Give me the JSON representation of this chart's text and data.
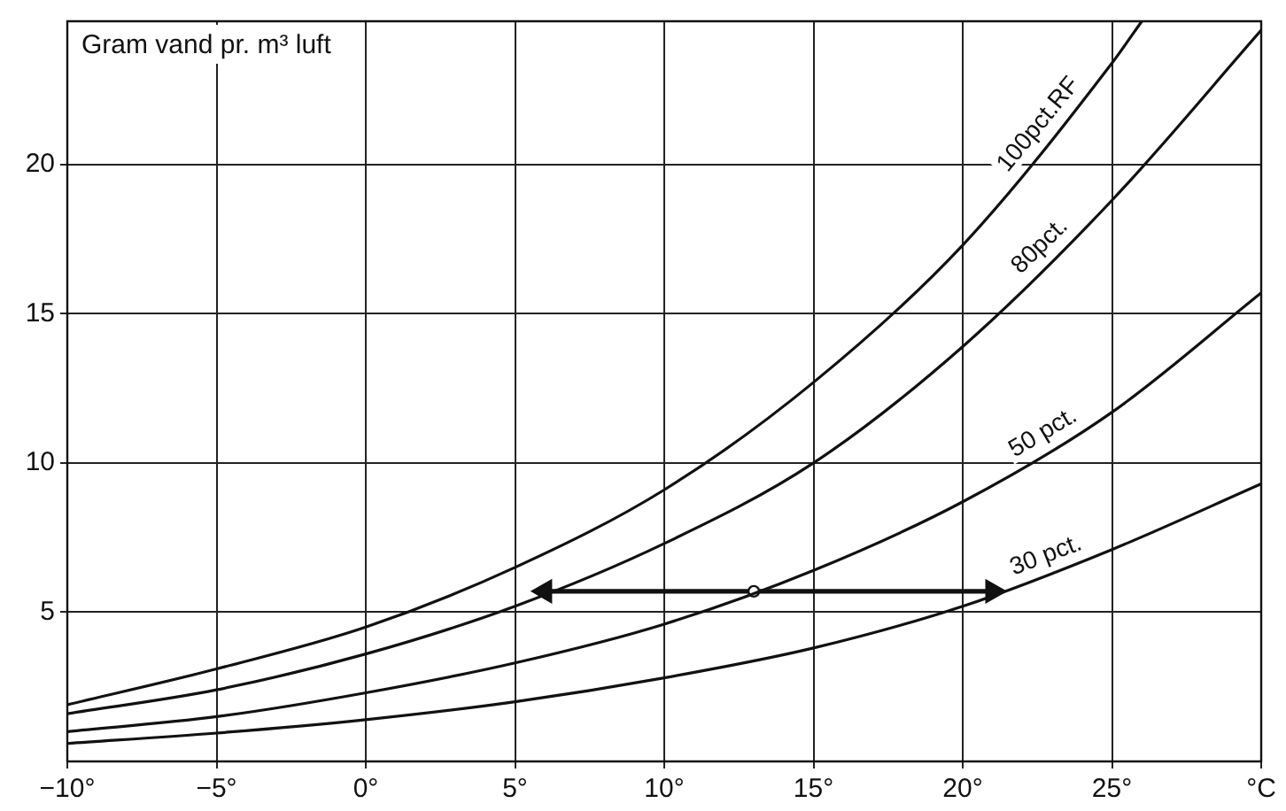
{
  "chart_data": {
    "type": "line",
    "ylabel": "Gram vand pr. m³ luft",
    "x": [
      -10,
      -5,
      0,
      5,
      10,
      15,
      20,
      25,
      30
    ],
    "series": [
      {
        "name": "100pct.RF",
        "color": "#111111",
        "x": [
          -10,
          -5,
          0,
          5,
          10,
          15,
          20,
          25,
          26
        ],
        "values": [
          1.9,
          3.1,
          4.5,
          6.5,
          9.1,
          12.7,
          17.3,
          23.4,
          24.8
        ]
      },
      {
        "name": "80pct.",
        "color": "#111111",
        "values": [
          1.6,
          2.4,
          3.6,
          5.2,
          7.3,
          10,
          13.9,
          18.8,
          24.5
        ]
      },
      {
        "name": "50 pct.",
        "color": "#111111",
        "values": [
          1.0,
          1.5,
          2.3,
          3.3,
          4.6,
          6.4,
          8.7,
          11.7,
          15.7
        ]
      },
      {
        "name": "30 pct.",
        "color": "#111111",
        "values": [
          0.6,
          0.95,
          1.4,
          2.0,
          2.8,
          3.8,
          5.2,
          7.1,
          9.3
        ]
      },
      {
        "color": "#111111",
        "marker": "triangle",
        "x": [
          6,
          13,
          21
        ],
        "values": [
          5.7,
          5.7,
          5.7
        ]
      }
    ],
    "xlim": [
      -10,
      30
    ],
    "ylim": [
      0,
      24.8
    ],
    "xticks": [
      {
        "value": -10,
        "label": "−10°"
      },
      {
        "value": -5,
        "label": "−5°"
      },
      {
        "value": 0,
        "label": "0°"
      },
      {
        "value": 5,
        "label": "5°"
      },
      {
        "value": 10,
        "label": "10°"
      },
      {
        "value": 15,
        "label": "15°"
      },
      {
        "value": 20,
        "label": "20°"
      },
      {
        "value": 25,
        "label": "25°"
      },
      {
        "value": 30,
        "label": "°C"
      }
    ],
    "yticks": [
      5,
      10,
      15,
      20
    ],
    "grid": true,
    "legend": false,
    "marker": "none",
    "line_style": "solid"
  }
}
